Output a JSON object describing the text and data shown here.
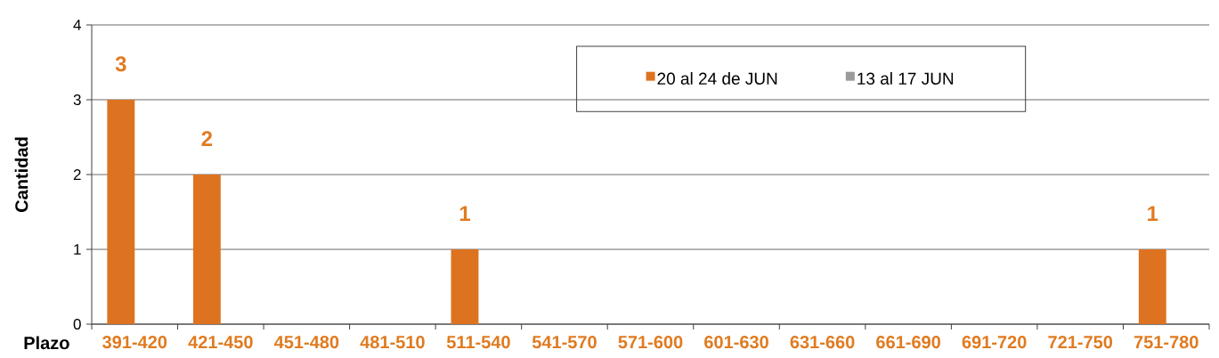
{
  "chart_data": {
    "type": "bar",
    "xlabel": "Plazo",
    "ylabel": "Cantidad",
    "categories": [
      "391-420",
      "421-450",
      "451-480",
      "481-510",
      "511-540",
      "541-570",
      "571-600",
      "601-630",
      "631-660",
      "661-690",
      "691-720",
      "721-750",
      "751-780"
    ],
    "series": [
      {
        "name": "20 al 24 de JUN",
        "color": "#dd7321",
        "values": [
          3,
          2,
          null,
          null,
          1,
          null,
          null,
          null,
          null,
          null,
          null,
          null,
          1
        ]
      },
      {
        "name": "13 al 17 JUN",
        "color": "#9a9a9a",
        "values": [
          null,
          null,
          null,
          null,
          null,
          null,
          null,
          null,
          null,
          null,
          null,
          null,
          null
        ]
      }
    ],
    "ylim": [
      0,
      4
    ],
    "yticks": [
      0,
      1,
      2,
      3,
      4
    ],
    "grid": "y",
    "legend": "top right",
    "data_labels": true
  }
}
